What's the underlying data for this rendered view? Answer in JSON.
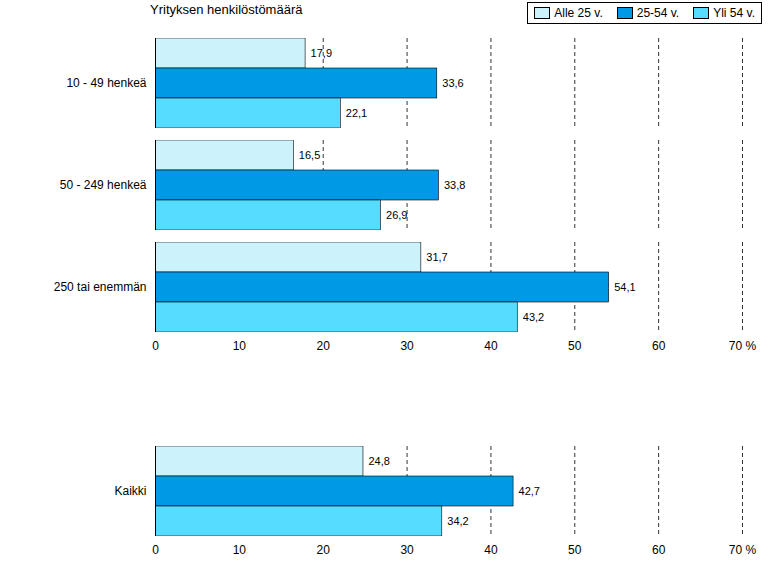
{
  "chart_data": {
    "type": "bar",
    "title": "Yrityksen henkilöstömäärä",
    "orientation": "horizontal",
    "categories": [
      "10 - 49 henkeä",
      "50 - 249 henkeä",
      "250 tai enemmän",
      null,
      "Kaikki"
    ],
    "series": [
      {
        "name": "Alle 25 v.",
        "color": "#ccf2fb",
        "values": [
          17.9,
          16.5,
          31.7,
          null,
          24.8
        ],
        "value_labels": [
          "17,9",
          "16,5",
          "31,7",
          null,
          "24,8"
        ]
      },
      {
        "name": "25-54 v.",
        "color": "#0099e6",
        "values": [
          33.6,
          33.8,
          54.1,
          null,
          42.7
        ],
        "value_labels": [
          "33,6",
          "33,8",
          "54,1",
          null,
          "42,7"
        ]
      },
      {
        "name": "Yli 54 v.",
        "color": "#55dcff",
        "values": [
          22.1,
          26.9,
          43.2,
          null,
          34.2
        ],
        "value_labels": [
          "22,1",
          "26,9",
          "43,2",
          null,
          "34,2"
        ]
      }
    ],
    "xlim": [
      0,
      70
    ],
    "xticks": [
      0,
      10,
      20,
      30,
      40,
      50,
      60,
      {
        "value": 70,
        "label": "70 %"
      }
    ],
    "grid": true,
    "legend": "top-right",
    "data_labels": true
  }
}
